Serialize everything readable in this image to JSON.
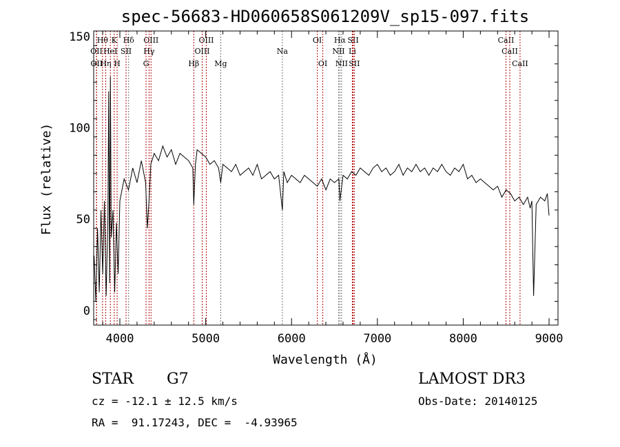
{
  "chart_data": {
    "type": "line",
    "title": "spec-56683-HD060658S061209V_sp15-097.fits",
    "xlabel": "Wavelength (Å)",
    "ylabel": "Flux (relative)",
    "xlim": [
      3695,
      9104
    ],
    "ylim": [
      -8,
      153
    ],
    "xticks": [
      4000,
      5000,
      6000,
      7000,
      8000,
      9000
    ],
    "yticks": [
      0,
      50,
      100,
      150
    ],
    "series": [
      {
        "name": "flux",
        "color": "#000000",
        "x": [
          3700,
          3720,
          3740,
          3760,
          3780,
          3800,
          3820,
          3840,
          3860,
          3870,
          3880,
          3890,
          3900,
          3920,
          3940,
          3960,
          3980,
          4000,
          4050,
          4100,
          4150,
          4200,
          4250,
          4300,
          4320,
          4340,
          4360,
          4400,
          4450,
          4500,
          4550,
          4600,
          4650,
          4700,
          4750,
          4800,
          4850,
          4861,
          4880,
          4900,
          4950,
          5000,
          5050,
          5100,
          5150,
          5175,
          5200,
          5250,
          5300,
          5350,
          5400,
          5450,
          5500,
          5550,
          5600,
          5650,
          5700,
          5750,
          5800,
          5850,
          5893,
          5910,
          5950,
          6000,
          6050,
          6100,
          6150,
          6200,
          6250,
          6300,
          6350,
          6400,
          6450,
          6500,
          6550,
          6563,
          6600,
          6650,
          6700,
          6750,
          6800,
          6850,
          6900,
          6950,
          7000,
          7050,
          7100,
          7150,
          7200,
          7250,
          7300,
          7350,
          7400,
          7450,
          7500,
          7550,
          7600,
          7650,
          7700,
          7750,
          7800,
          7850,
          7900,
          7950,
          8000,
          8050,
          8100,
          8150,
          8200,
          8250,
          8300,
          8350,
          8400,
          8450,
          8500,
          8550,
          8600,
          8650,
          8700,
          8750,
          8780,
          8800,
          8820,
          8850,
          8900,
          8950,
          8980,
          9000
        ],
        "y": [
          30,
          5,
          45,
          10,
          55,
          20,
          60,
          8,
          50,
          120,
          15,
          128,
          40,
          55,
          10,
          48,
          20,
          60,
          72,
          66,
          78,
          70,
          82,
          70,
          45,
          60,
          80,
          86,
          82,
          90,
          84,
          88,
          80,
          86,
          84,
          82,
          78,
          58,
          80,
          88,
          86,
          84,
          80,
          82,
          78,
          70,
          80,
          78,
          76,
          80,
          74,
          76,
          78,
          74,
          80,
          72,
          74,
          76,
          72,
          74,
          55,
          76,
          70,
          74,
          72,
          70,
          74,
          72,
          70,
          68,
          72,
          66,
          72,
          70,
          72,
          60,
          74,
          72,
          76,
          74,
          78,
          76,
          74,
          78,
          80,
          76,
          78,
          74,
          76,
          80,
          74,
          78,
          76,
          80,
          76,
          78,
          74,
          78,
          76,
          80,
          76,
          74,
          78,
          76,
          80,
          72,
          74,
          70,
          72,
          70,
          68,
          66,
          68,
          62,
          66,
          64,
          60,
          62,
          58,
          62,
          56,
          60,
          8,
          58,
          62,
          60,
          64,
          52
        ]
      }
    ],
    "lines": [
      {
        "label": "Hθ",
        "wl": 3798,
        "row": 1,
        "color": "#b00000"
      },
      {
        "label": "K",
        "wl": 3934,
        "row": 1,
        "color": "#b00000"
      },
      {
        "label": "Hδ",
        "wl": 4102,
        "row": 1,
        "color": "#707070"
      },
      {
        "label": "OIII",
        "wl": 4363,
        "row": 1,
        "color": "#b00000"
      },
      {
        "label": "OIII",
        "wl": 5007,
        "row": 1,
        "color": "#b00000"
      },
      {
        "label": "OI",
        "wl": 6300,
        "row": 1,
        "color": "#b00000"
      },
      {
        "label": "Hα",
        "wl": 6563,
        "row": 1,
        "color": "#707070"
      },
      {
        "label": "SII",
        "wl": 6717,
        "row": 1,
        "color": "#b00000"
      },
      {
        "label": "CaII",
        "wl": 8498,
        "row": 1,
        "color": "#b00000"
      },
      {
        "label": "OII",
        "wl": 3727,
        "row": 2,
        "color": "#b00000"
      },
      {
        "label": "HeI",
        "wl": 3889,
        "row": 2,
        "color": "#b00000"
      },
      {
        "label": "SII",
        "wl": 4072,
        "row": 2,
        "color": "#b00000"
      },
      {
        "label": "Hγ",
        "wl": 4340,
        "row": 2,
        "color": "#b00000"
      },
      {
        "label": "OIII",
        "wl": 4959,
        "row": 2,
        "color": "#b00000"
      },
      {
        "label": "Na",
        "wl": 5893,
        "row": 2,
        "color": "#707070"
      },
      {
        "label": "NII",
        "wl": 6548,
        "row": 2,
        "color": "#707070"
      },
      {
        "label": "Li",
        "wl": 6708,
        "row": 2,
        "color": "#b00000"
      },
      {
        "label": "CaII",
        "wl": 8542,
        "row": 2,
        "color": "#b00000"
      },
      {
        "label": "OII",
        "wl": 3729,
        "row": 3,
        "color": "#b00000"
      },
      {
        "label": "Hη",
        "wl": 3835,
        "row": 3,
        "color": "#b00000"
      },
      {
        "label": "H",
        "wl": 3968,
        "row": 3,
        "color": "#b00000"
      },
      {
        "label": "G",
        "wl": 4305,
        "row": 3,
        "color": "#b00000"
      },
      {
        "label": "Hβ",
        "wl": 4861,
        "row": 3,
        "color": "#b00000"
      },
      {
        "label": "Mg",
        "wl": 5175,
        "row": 3,
        "color": "#707070"
      },
      {
        "label": "OI",
        "wl": 6364,
        "row": 3,
        "color": "#b00000"
      },
      {
        "label": "NII",
        "wl": 6583,
        "row": 3,
        "color": "#707070"
      },
      {
        "label": "SII",
        "wl": 6731,
        "row": 3,
        "color": "#b00000"
      },
      {
        "label": "CaII",
        "wl": 8662,
        "row": 3,
        "color": "#b00000"
      }
    ]
  },
  "info": {
    "class": "STAR",
    "subclass": "G7",
    "cz": "cz = -12.1 ± 12.5 km/s",
    "radec": "RA =  91.17243, DEC =  -4.93965",
    "survey": "LAMOST DR3",
    "obsdate": "Obs-Date: 20140125"
  }
}
